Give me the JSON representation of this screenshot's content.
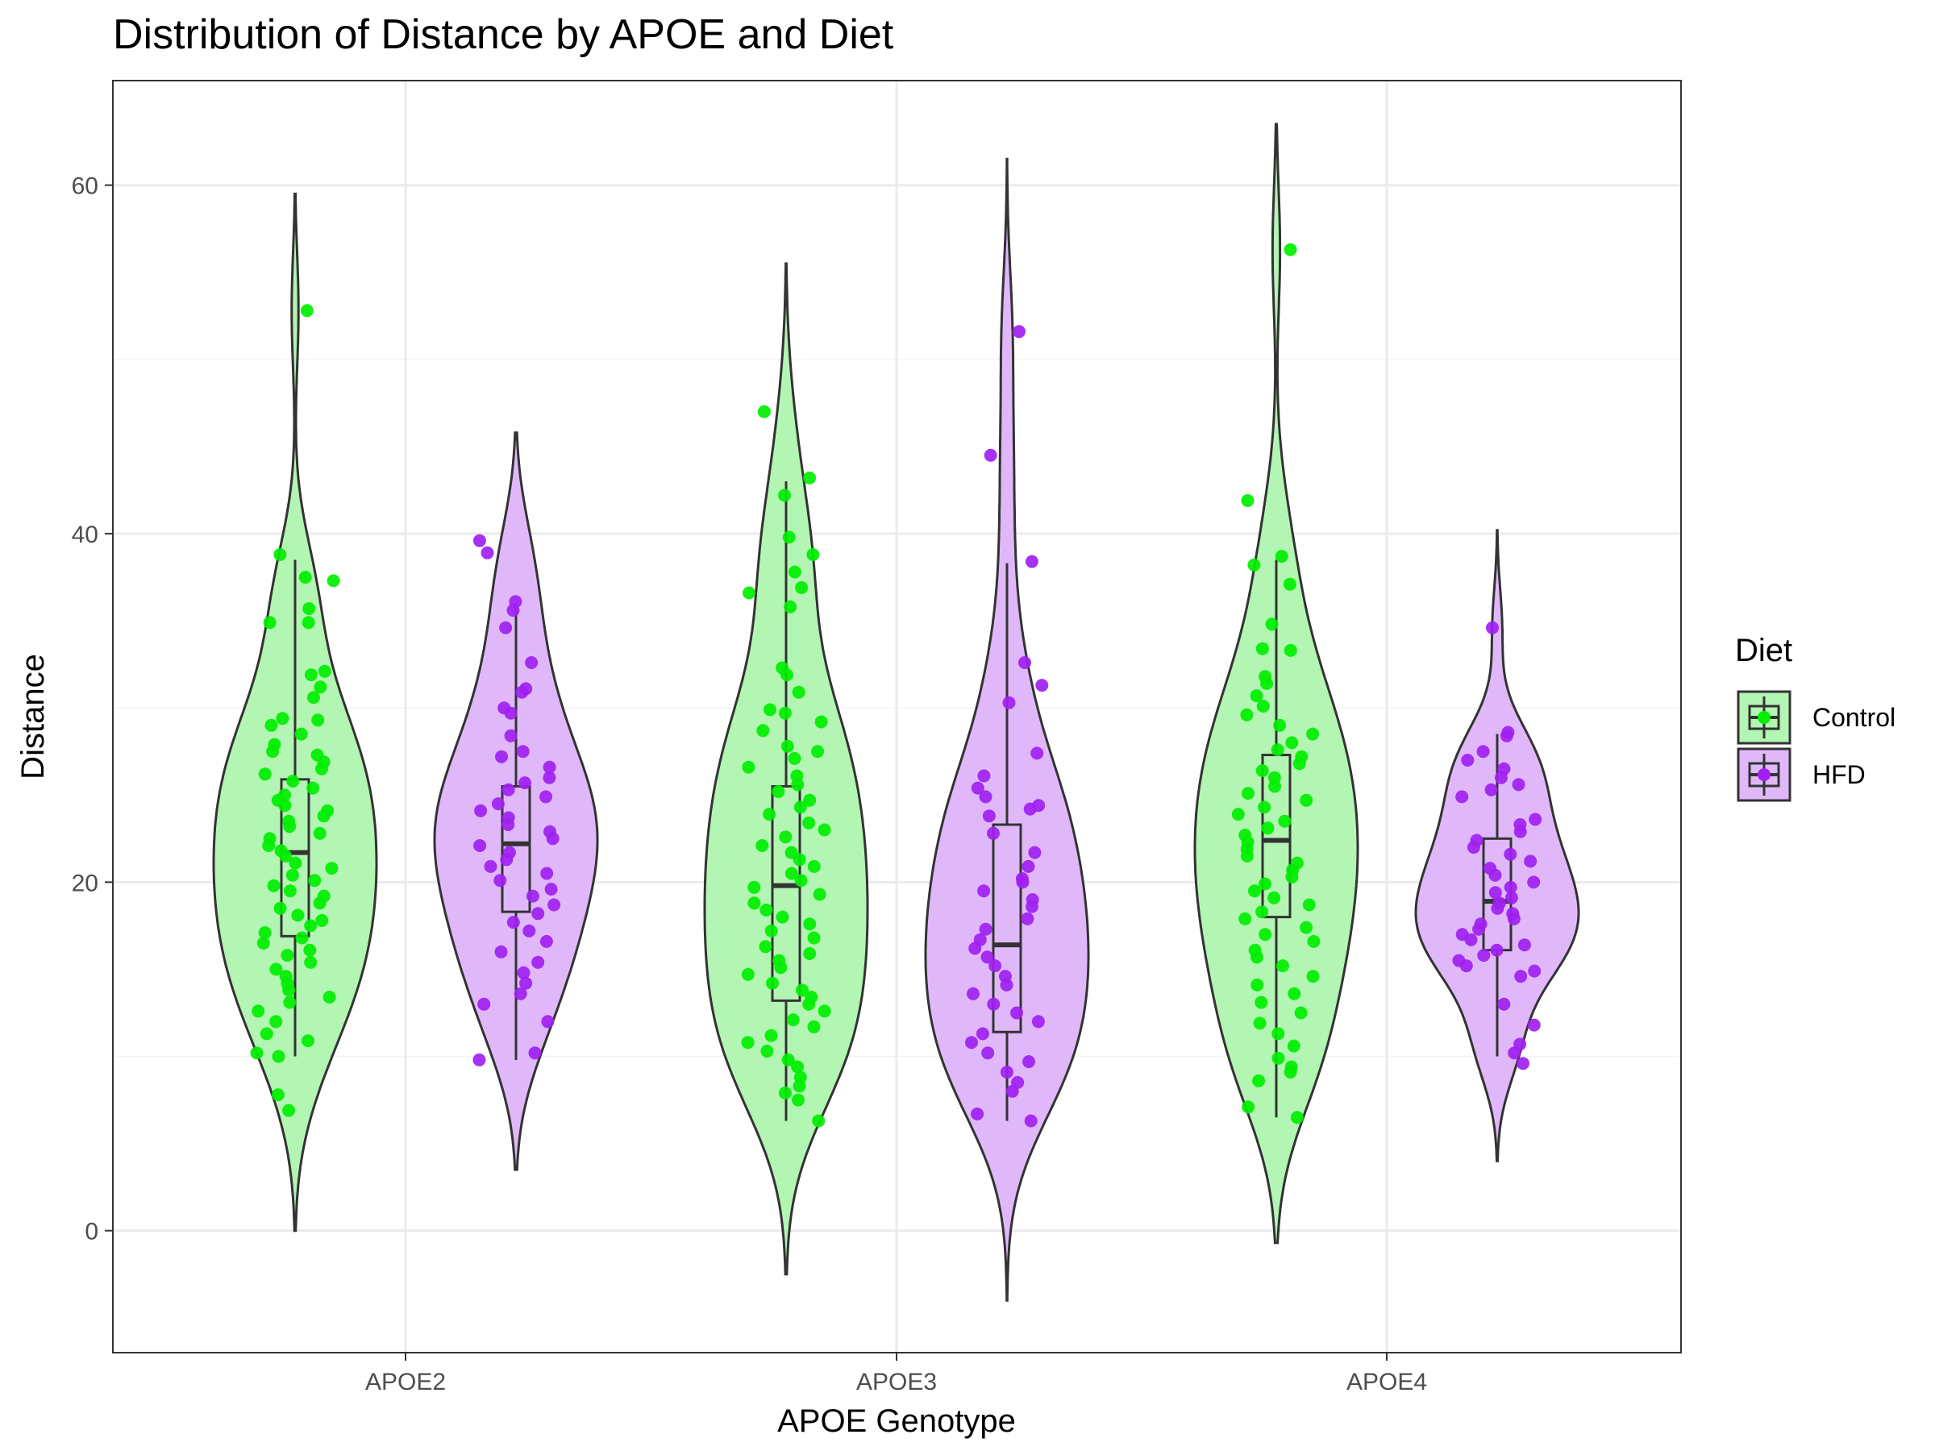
{
  "chart_data": {
    "type": "violin",
    "title": "Distribution of Distance by APOE and Diet",
    "xlabel": "APOE Genotype",
    "ylabel": "Distance",
    "categories": [
      "APOE2",
      "APOE3",
      "APOE4"
    ],
    "ylim": [
      -7,
      66
    ],
    "yticks": [
      0,
      20,
      40,
      60
    ],
    "grid": true,
    "legend": {
      "title": "Diet",
      "position": "right",
      "entries": [
        "Control",
        "HFD"
      ]
    },
    "series": [
      {
        "name": "Control",
        "point_color": "#00ee00",
        "fill_color": "#b3f5b3",
        "groups": [
          {
            "category": "APOE2",
            "violin_range": [
              0,
              59.5
            ],
            "box": {
              "min": 10,
              "q1": 16.9,
              "median": 21.7,
              "q3": 25.9,
              "max": 38.5
            },
            "points": [
              52.8,
              38.8,
              37.5,
              37.3,
              35.7,
              34.9,
              34.9,
              32.1,
              31.9,
              31.2,
              30.6,
              29.4,
              29.3,
              29.0,
              28.5,
              27.9,
              27.5,
              27.3,
              26.9,
              26.5,
              26.2,
              25.8,
              25.4,
              25.0,
              24.7,
              24.4,
              24.1,
              23.8,
              23.5,
              23.2,
              22.8,
              22.5,
              22.1,
              21.8,
              21.5,
              21.1,
              20.8,
              20.4,
              20.1,
              19.8,
              19.5,
              19.2,
              18.8,
              18.5,
              18.1,
              17.8,
              17.5,
              17.1,
              16.8,
              16.5,
              16.1,
              15.8,
              15.4,
              15.0,
              14.6,
              14.2,
              13.8,
              13.4,
              13.1,
              12.6,
              12.0,
              11.3,
              10.9,
              10.2,
              10.0,
              7.8,
              6.9
            ]
          },
          {
            "category": "APOE3",
            "violin_range": [
              -2.5,
              55.5
            ],
            "box": {
              "min": 6.3,
              "q1": 13.2,
              "median": 19.8,
              "q3": 25.5,
              "max": 43
            },
            "points": [
              47.0,
              43.2,
              42.2,
              39.8,
              38.8,
              37.8,
              36.9,
              36.6,
              35.8,
              32.3,
              31.9,
              30.9,
              29.9,
              29.7,
              29.2,
              28.7,
              27.8,
              27.5,
              27.1,
              26.6,
              26.1,
              25.6,
              25.2,
              24.7,
              24.3,
              23.9,
              23.4,
              23.0,
              22.6,
              22.1,
              21.7,
              21.3,
              20.9,
              20.5,
              20.1,
              19.7,
              19.3,
              18.8,
              18.4,
              18.0,
              17.6,
              17.2,
              16.8,
              16.3,
              15.9,
              15.5,
              15.1,
              14.7,
              14.2,
              13.8,
              13.4,
              13.0,
              12.6,
              12.1,
              11.7,
              11.2,
              10.8,
              10.3,
              9.8,
              9.4,
              8.8,
              8.3,
              7.9,
              7.5,
              6.3
            ]
          },
          {
            "category": "APOE4",
            "violin_range": [
              -0.7,
              63.5
            ],
            "box": {
              "min": 6.5,
              "q1": 18.0,
              "median": 22.4,
              "q3": 27.3,
              "max": 38.5
            },
            "points": [
              56.3,
              41.9,
              38.7,
              38.2,
              37.1,
              34.8,
              33.4,
              33.3,
              31.8,
              31.4,
              30.7,
              30.1,
              29.6,
              29.0,
              28.5,
              28.0,
              27.6,
              27.2,
              26.8,
              26.4,
              26.0,
              25.5,
              25.1,
              24.7,
              24.3,
              23.9,
              23.5,
              23.1,
              22.7,
              22.3,
              21.9,
              21.5,
              21.1,
              20.7,
              20.3,
              19.9,
              19.5,
              19.1,
              18.7,
              18.3,
              17.9,
              17.4,
              17.0,
              16.6,
              16.1,
              15.7,
              15.2,
              14.6,
              14.1,
              13.6,
              13.1,
              12.5,
              11.9,
              11.3,
              10.6,
              9.9,
              9.4,
              9.1,
              8.6,
              7.1,
              6.5
            ]
          }
        ]
      },
      {
        "name": "HFD",
        "point_color": "#a020f0",
        "fill_color": "#e0b8fa",
        "groups": [
          {
            "category": "APOE2",
            "violin_range": [
              3.5,
              45.8
            ],
            "box": {
              "min": 9.8,
              "q1": 18.3,
              "median": 22.2,
              "q3": 25.5,
              "max": 36.0
            },
            "points": [
              39.6,
              38.9,
              36.1,
              35.6,
              34.6,
              32.6,
              31.1,
              30.9,
              30.0,
              29.7,
              28.4,
              27.5,
              27.2,
              26.6,
              26.0,
              25.7,
              25.3,
              24.9,
              24.5,
              24.1,
              23.7,
              23.3,
              22.9,
              22.5,
              22.1,
              21.7,
              21.3,
              20.9,
              20.5,
              20.1,
              19.6,
              19.2,
              18.7,
              18.2,
              17.7,
              17.2,
              16.6,
              16.0,
              15.4,
              14.8,
              14.2,
              13.6,
              13.0,
              12.0,
              10.2,
              9.8
            ]
          },
          {
            "category": "APOE3",
            "violin_range": [
              -4,
              61.5
            ],
            "box": {
              "min": 6.3,
              "q1": 11.4,
              "median": 16.4,
              "q3": 23.3,
              "max": 38.3
            },
            "points": [
              51.6,
              44.5,
              38.4,
              32.6,
              31.3,
              30.3,
              27.4,
              26.1,
              25.4,
              24.9,
              24.4,
              24.2,
              23.8,
              22.8,
              21.7,
              20.9,
              20.2,
              20.0,
              19.5,
              19.0,
              18.6,
              17.9,
              17.3,
              16.7,
              16.2,
              15.7,
              15.2,
              14.6,
              14.1,
              13.6,
              13.0,
              12.5,
              12.0,
              11.3,
              10.8,
              10.2,
              9.7,
              9.1,
              8.5,
              8.0,
              6.7,
              6.3
            ]
          },
          {
            "category": "APOE4",
            "violin_range": [
              4,
              40.2
            ],
            "box": {
              "min": 10.0,
              "q1": 16.1,
              "median": 18.9,
              "q3": 22.5,
              "max": 28.5
            },
            "points": [
              34.6,
              28.6,
              28.4,
              27.5,
              27.0,
              26.5,
              26.0,
              25.6,
              25.3,
              24.9,
              23.6,
              23.3,
              22.9,
              22.4,
              22.0,
              21.6,
              21.2,
              20.8,
              20.4,
              20.0,
              19.7,
              19.4,
              19.1,
              18.8,
              18.5,
              18.2,
              17.9,
              17.6,
              17.3,
              17.0,
              16.7,
              16.4,
              16.1,
              15.8,
              15.5,
              15.2,
              14.9,
              14.6,
              13.0,
              11.8,
              10.7,
              10.2,
              9.6
            ]
          }
        ]
      }
    ]
  }
}
